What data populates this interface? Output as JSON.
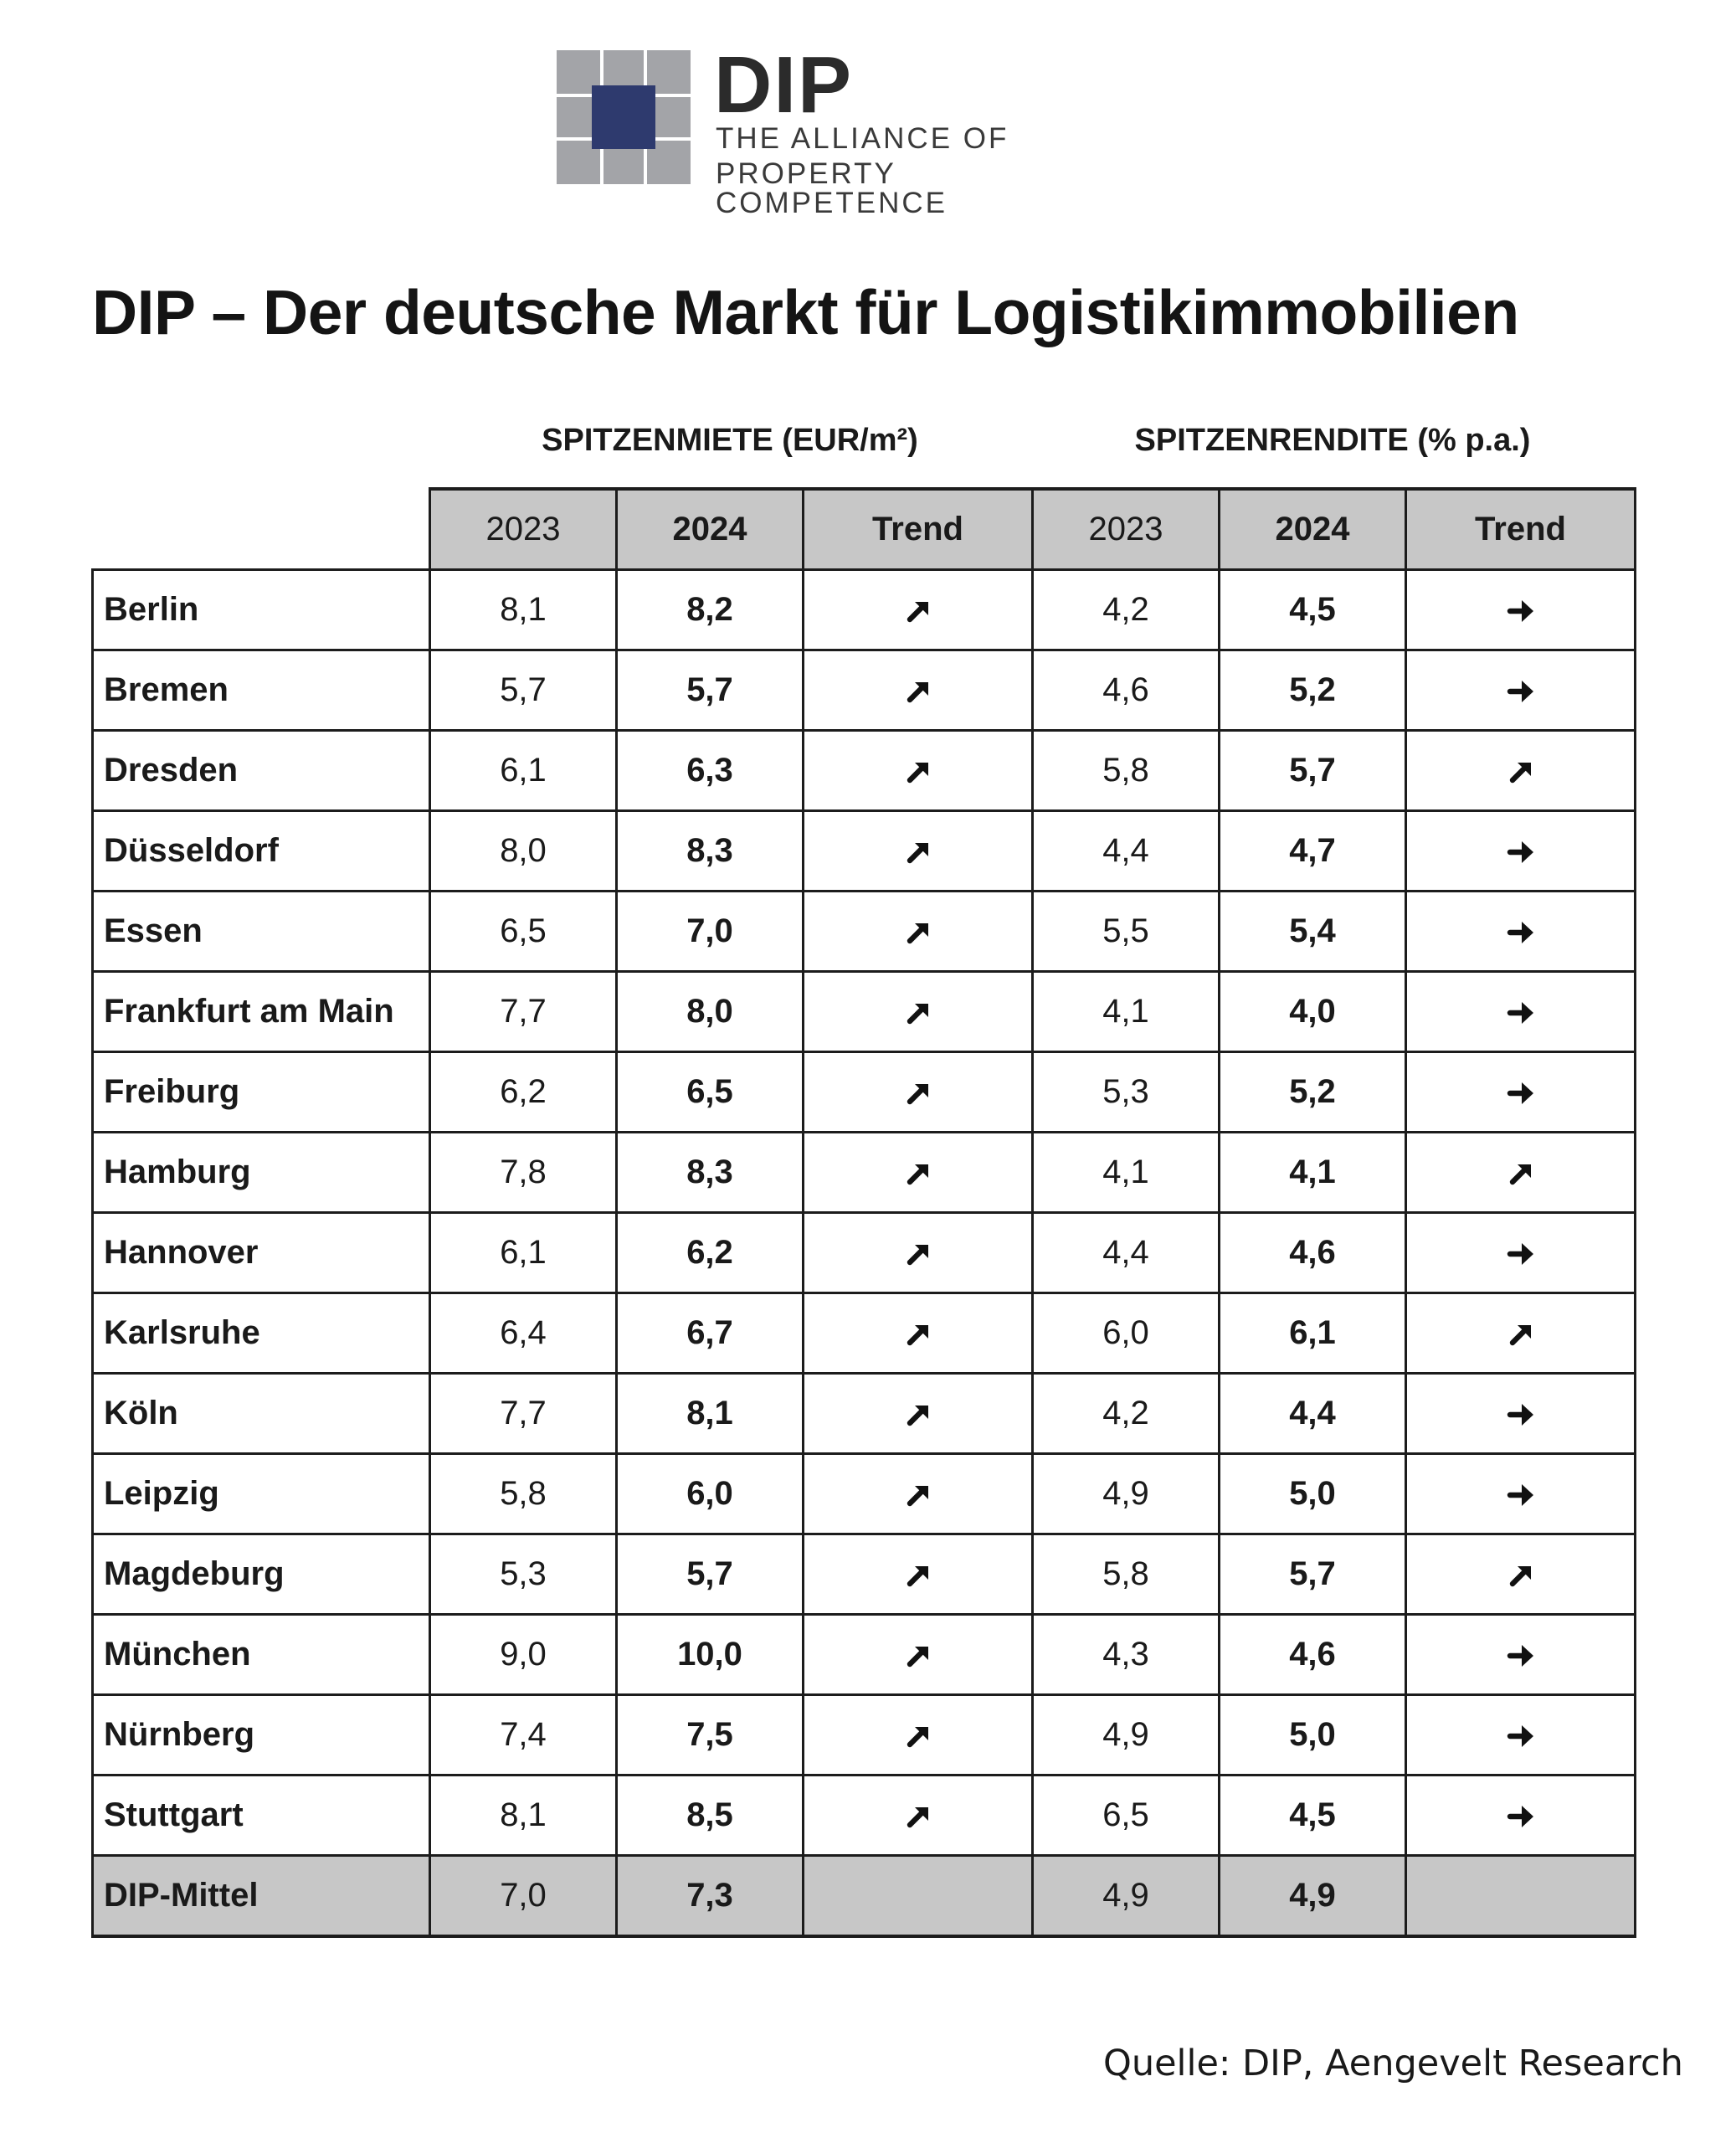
{
  "logo": {
    "name": "DIP",
    "tagline_1": "THE ALLIANCE OF",
    "tagline_2": "PROPERTY COMPETENCE",
    "colors": {
      "grey": "#a3a4a8",
      "navy": "#2e3a6e"
    }
  },
  "title": "DIP – Der deutsche Markt für Logistikimmobilien",
  "groups": {
    "rent": "SPITZENMIETE (EUR/m²)",
    "yield": "SPITZENRENDITE (% p.a.)"
  },
  "columns": {
    "rent": [
      "2023",
      "2024",
      "Trend"
    ],
    "yield": [
      "2023",
      "2024",
      "Trend"
    ]
  },
  "trend_icons": {
    "up": "arrow-up-right-icon",
    "flat": "arrow-right-icon"
  },
  "rows": [
    {
      "city": "Berlin",
      "rent_2023": "8,1",
      "rent_2024": "8,2",
      "rent_trend": "up",
      "yield_2023": "4,2",
      "yield_2024": "4,5",
      "yield_trend": "flat"
    },
    {
      "city": "Bremen",
      "rent_2023": "5,7",
      "rent_2024": "5,7",
      "rent_trend": "up",
      "yield_2023": "4,6",
      "yield_2024": "5,2",
      "yield_trend": "flat"
    },
    {
      "city": "Dresden",
      "rent_2023": "6,1",
      "rent_2024": "6,3",
      "rent_trend": "up",
      "yield_2023": "5,8",
      "yield_2024": "5,7",
      "yield_trend": "up"
    },
    {
      "city": "Düsseldorf",
      "rent_2023": "8,0",
      "rent_2024": "8,3",
      "rent_trend": "up",
      "yield_2023": "4,4",
      "yield_2024": "4,7",
      "yield_trend": "flat"
    },
    {
      "city": "Essen",
      "rent_2023": "6,5",
      "rent_2024": "7,0",
      "rent_trend": "up",
      "yield_2023": "5,5",
      "yield_2024": "5,4",
      "yield_trend": "flat"
    },
    {
      "city": "Frankfurt am Main",
      "rent_2023": "7,7",
      "rent_2024": "8,0",
      "rent_trend": "up",
      "yield_2023": "4,1",
      "yield_2024": "4,0",
      "yield_trend": "flat"
    },
    {
      "city": "Freiburg",
      "rent_2023": "6,2",
      "rent_2024": "6,5",
      "rent_trend": "up",
      "yield_2023": "5,3",
      "yield_2024": "5,2",
      "yield_trend": "flat"
    },
    {
      "city": "Hamburg",
      "rent_2023": "7,8",
      "rent_2024": "8,3",
      "rent_trend": "up",
      "yield_2023": "4,1",
      "yield_2024": "4,1",
      "yield_trend": "up"
    },
    {
      "city": "Hannover",
      "rent_2023": "6,1",
      "rent_2024": "6,2",
      "rent_trend": "up",
      "yield_2023": "4,4",
      "yield_2024": "4,6",
      "yield_trend": "flat"
    },
    {
      "city": "Karlsruhe",
      "rent_2023": "6,4",
      "rent_2024": "6,7",
      "rent_trend": "up",
      "yield_2023": "6,0",
      "yield_2024": "6,1",
      "yield_trend": "up"
    },
    {
      "city": "Köln",
      "rent_2023": "7,7",
      "rent_2024": "8,1",
      "rent_trend": "up",
      "yield_2023": "4,2",
      "yield_2024": "4,4",
      "yield_trend": "flat"
    },
    {
      "city": "Leipzig",
      "rent_2023": "5,8",
      "rent_2024": "6,0",
      "rent_trend": "up",
      "yield_2023": "4,9",
      "yield_2024": "5,0",
      "yield_trend": "flat"
    },
    {
      "city": "Magdeburg",
      "rent_2023": "5,3",
      "rent_2024": "5,7",
      "rent_trend": "up",
      "yield_2023": "5,8",
      "yield_2024": "5,7",
      "yield_trend": "up"
    },
    {
      "city": "München",
      "rent_2023": "9,0",
      "rent_2024": "10,0",
      "rent_trend": "up",
      "yield_2023": "4,3",
      "yield_2024": "4,6",
      "yield_trend": "flat"
    },
    {
      "city": "Nürnberg",
      "rent_2023": "7,4",
      "rent_2024": "7,5",
      "rent_trend": "up",
      "yield_2023": "4,9",
      "yield_2024": "5,0",
      "yield_trend": "flat"
    },
    {
      "city": "Stuttgart",
      "rent_2023": "8,1",
      "rent_2024": "8,5",
      "rent_trend": "up",
      "yield_2023": "6,5",
      "yield_2024": "4,5",
      "yield_trend": "flat"
    }
  ],
  "average": {
    "label": "DIP-Mittel",
    "rent_2023": "7,0",
    "rent_2024": "7,3",
    "yield_2023": "4,9",
    "yield_2024": "4,9"
  },
  "source": "Quelle: DIP, Aengevelt Research"
}
